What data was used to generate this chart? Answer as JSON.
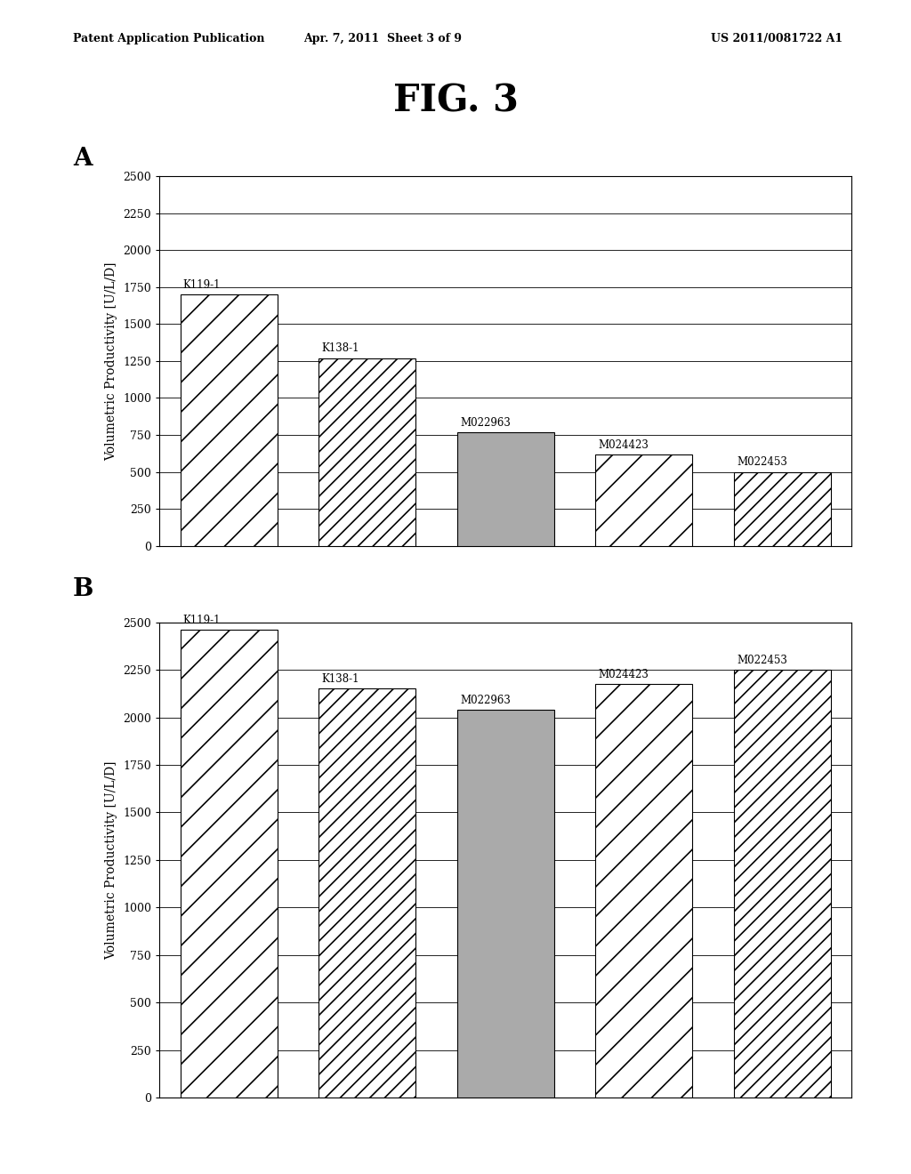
{
  "fig_title": "FIG. 3",
  "patent_line1": "Patent Application Publication",
  "patent_line2": "Apr. 7, 2011  Sheet 3 of 9",
  "patent_line3": "US 2011/0081722 A1",
  "panel_A_label": "A",
  "panel_B_label": "B",
  "chart_A": {
    "categories": [
      "K119-1",
      "K138-1",
      "M022963",
      "M024423",
      "M022453"
    ],
    "values": [
      1700,
      1270,
      770,
      620,
      500
    ],
    "ylabel": "Volumetric Productivity [U/L/D]",
    "ylim": [
      0,
      2500
    ],
    "yticks": [
      0,
      250,
      500,
      750,
      1000,
      1250,
      1500,
      1750,
      2000,
      2250,
      2500
    ]
  },
  "chart_B": {
    "categories": [
      "K119-1",
      "K138-1",
      "M022963",
      "M024423",
      "M022453"
    ],
    "values": [
      2460,
      2150,
      2040,
      2175,
      2250
    ],
    "ylabel": "Volumetric Productivity [U/L/D]",
    "ylim": [
      0,
      2500
    ],
    "yticks": [
      0,
      250,
      500,
      750,
      1000,
      1250,
      1500,
      1750,
      2000,
      2250,
      2500
    ]
  },
  "hatch_A": [
    "//",
    "//",
    "....",
    "//",
    "//"
  ],
  "hatch_B": [
    "//",
    "//",
    "....",
    "//",
    "//"
  ],
  "face_A": [
    "white",
    "white",
    "#999999",
    "white",
    "white"
  ],
  "face_B": [
    "white",
    "white",
    "#999999",
    "white",
    "white"
  ],
  "background_color": "#ffffff",
  "text_color": "#000000"
}
